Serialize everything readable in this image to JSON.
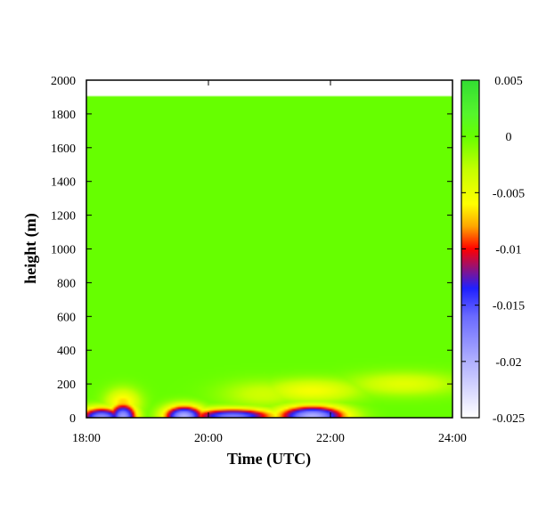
{
  "chart_data": {
    "type": "heatmap",
    "title": "",
    "xlabel": "Time (UTC)",
    "ylabel": "height (m)",
    "x_ticks": [
      "18:00",
      "20:00",
      "22:00",
      "24:00"
    ],
    "x_tick_hours": [
      18,
      20,
      22,
      24
    ],
    "xlim_hours": [
      18,
      24
    ],
    "y_ticks": [
      "0",
      "200",
      "400",
      "600",
      "800",
      "1000",
      "1200",
      "1400",
      "1600",
      "1800",
      "2000"
    ],
    "y_tick_values": [
      0,
      200,
      400,
      600,
      800,
      1000,
      1200,
      1400,
      1600,
      1800,
      2000
    ],
    "ylim": [
      0,
      2000
    ],
    "data_top_height": 1910,
    "colorbar": {
      "range": [
        -0.025,
        0.005
      ],
      "tick_labels": [
        "0.005",
        "0",
        "-0.005",
        "-0.01",
        "-0.015",
        "-0.02",
        "-0.025"
      ],
      "tick_values": [
        0.005,
        0,
        -0.005,
        -0.01,
        -0.015,
        -0.02,
        -0.025
      ],
      "colors": [
        {
          "value": 0.005,
          "color": "#33dd33"
        },
        {
          "value": 0.002,
          "color": "#55f52c"
        },
        {
          "value": 0.0,
          "color": "#66ff00"
        },
        {
          "value": -0.003,
          "color": "#c6ff00"
        },
        {
          "value": -0.006,
          "color": "#ffff00"
        },
        {
          "value": -0.008,
          "color": "#ffa500"
        },
        {
          "value": -0.01,
          "color": "#ff0000"
        },
        {
          "value": -0.0115,
          "color": "#a0106a"
        },
        {
          "value": -0.0135,
          "color": "#2020ff"
        },
        {
          "value": -0.016,
          "color": "#6a6aff"
        },
        {
          "value": -0.02,
          "color": "#b0b0ff"
        },
        {
          "value": -0.025,
          "color": "#ffffff"
        }
      ]
    },
    "field": {
      "background_value": 0.0,
      "features": [
        {
          "time_hours": 18.6,
          "time_width": 0.22,
          "height_m": 5,
          "height_width": 80,
          "value": -0.019
        },
        {
          "time_hours": 18.25,
          "time_width": 0.35,
          "height_m": 5,
          "height_width": 55,
          "value": -0.018
        },
        {
          "time_hours": 18.6,
          "time_width": 0.28,
          "height_m": 90,
          "height_width": 80,
          "value": -0.007
        },
        {
          "time_hours": 19.6,
          "time_width": 0.32,
          "height_m": 10,
          "height_width": 60,
          "value": -0.02
        },
        {
          "time_hours": 20.4,
          "time_width": 0.7,
          "height_m": 10,
          "height_width": 45,
          "value": -0.017
        },
        {
          "time_hours": 21.7,
          "time_width": 0.55,
          "height_m": 10,
          "height_width": 60,
          "value": -0.02
        },
        {
          "time_hours": 21.7,
          "time_width": 0.8,
          "height_m": 160,
          "height_width": 70,
          "value": -0.0055
        },
        {
          "time_hours": 23.2,
          "time_width": 0.9,
          "height_m": 200,
          "height_width": 70,
          "value": -0.0045
        },
        {
          "time_hours": 20.9,
          "time_width": 0.7,
          "height_m": 140,
          "height_width": 80,
          "value": -0.0035
        }
      ]
    }
  }
}
